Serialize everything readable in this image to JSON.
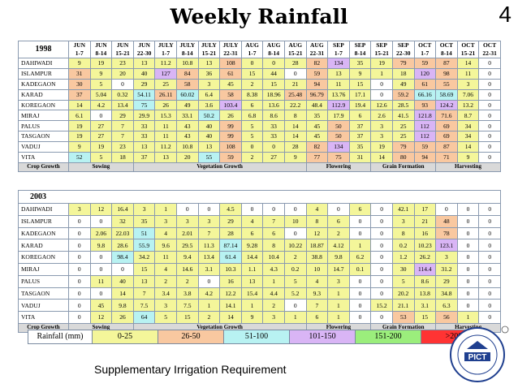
{
  "title": "Weekly Rainfall",
  "page_number": "4",
  "week_headers": [
    [
      "JUN",
      "1-7"
    ],
    [
      "JUN",
      "8-14"
    ],
    [
      "JUN",
      "15-21"
    ],
    [
      "JUN",
      "22-30"
    ],
    [
      "JULY",
      "1-7"
    ],
    [
      "JULY",
      "8-14"
    ],
    [
      "JULY",
      "15-21"
    ],
    [
      "JULY",
      "22-31"
    ],
    [
      "AUG",
      "1-7"
    ],
    [
      "AUG",
      "8-14"
    ],
    [
      "AUG",
      "15-21"
    ],
    [
      "AUG",
      "22-31"
    ],
    [
      "SEP",
      "1-7"
    ],
    [
      "SEP",
      "8-14"
    ],
    [
      "SEP",
      "15-21"
    ],
    [
      "SEP",
      "22-30"
    ],
    [
      "OCT",
      "1-7"
    ],
    [
      "OCT",
      "8-14"
    ],
    [
      "OCT",
      "15-21"
    ],
    [
      "OCT",
      "22-31"
    ]
  ],
  "table1": {
    "year": "1998",
    "rows": [
      {
        "name": "DAHIWADI",
        "values": [
          "9",
          "19",
          "23",
          "13",
          "11.2",
          "10.8",
          "13",
          "108",
          "0",
          "0",
          "28",
          "82",
          "134",
          "35",
          "19",
          "79",
          "59",
          "87",
          "14",
          "0"
        ],
        "classes": [
          1,
          1,
          1,
          1,
          1,
          1,
          1,
          2,
          1,
          1,
          1,
          2,
          4,
          1,
          1,
          2,
          2,
          2,
          1,
          0
        ]
      },
      {
        "name": "ISLAMPUR",
        "values": [
          "31",
          "9",
          "20",
          "40",
          "127",
          "84",
          "36",
          "61",
          "15",
          "44",
          "0",
          "59",
          "13",
          "9",
          "1",
          "18",
          "120",
          "98",
          "11",
          "0"
        ],
        "classes": [
          2,
          1,
          1,
          1,
          4,
          2,
          1,
          2,
          1,
          1,
          0,
          2,
          1,
          1,
          1,
          1,
          4,
          2,
          1,
          0
        ]
      },
      {
        "name": "KADEGAON",
        "values": [
          "30",
          "5",
          "0",
          "29",
          "25",
          "58",
          "3",
          "45",
          "2",
          "15",
          "21",
          "94",
          "11",
          "15",
          "0",
          "49",
          "61",
          "55",
          "3",
          "0"
        ],
        "classes": [
          2,
          1,
          0,
          1,
          1,
          2,
          1,
          1,
          1,
          1,
          1,
          2,
          1,
          1,
          0,
          1,
          2,
          2,
          1,
          0
        ]
      },
      {
        "name": "KARAD",
        "values": [
          "37",
          "5.04",
          "0.32",
          "54.11",
          "26.11",
          "60.02",
          "6.4",
          "58",
          "8.38",
          "18.96",
          "25.48",
          "96.79",
          "13.76",
          "17.1",
          "0",
          "59.2",
          "66.16",
          "58.69",
          "7.06",
          "0"
        ],
        "classes": [
          2,
          1,
          1,
          3,
          2,
          3,
          1,
          2,
          1,
          1,
          2,
          2,
          1,
          1,
          0,
          2,
          3,
          3,
          1,
          0
        ]
      },
      {
        "name": "KOREGAON",
        "values": [
          "14",
          "4.2",
          "13.4",
          "75",
          "26",
          "49",
          "3.6",
          "103.4",
          "6",
          "13.6",
          "22.2",
          "48.4",
          "112.9",
          "19.4",
          "12.6",
          "28.5",
          "93",
          "124.2",
          "13.2",
          "0"
        ],
        "classes": [
          1,
          1,
          1,
          3,
          1,
          1,
          1,
          4,
          1,
          1,
          1,
          1,
          4,
          1,
          1,
          1,
          2,
          4,
          1,
          0
        ]
      },
      {
        "name": "MIRAJ",
        "values": [
          "6.1",
          "0",
          "29",
          "29.9",
          "15.3",
          "33.1",
          "50.2",
          "26",
          "6.8",
          "8.6",
          "8",
          "35",
          "17.9",
          "6",
          "2.6",
          "41.5",
          "121.8",
          "71.6",
          "8.7",
          "0"
        ],
        "classes": [
          1,
          0,
          1,
          1,
          1,
          1,
          3,
          1,
          1,
          1,
          1,
          1,
          1,
          1,
          1,
          1,
          4,
          2,
          1,
          0
        ]
      },
      {
        "name": "PALUS",
        "values": [
          "19",
          "27",
          "7",
          "33",
          "11",
          "43",
          "40",
          "99",
          "5",
          "33",
          "14",
          "45",
          "50",
          "37",
          "3",
          "25",
          "112",
          "69",
          "34",
          "0"
        ],
        "classes": [
          1,
          1,
          1,
          1,
          1,
          1,
          1,
          2,
          1,
          1,
          1,
          1,
          2,
          1,
          1,
          1,
          4,
          2,
          1,
          0
        ]
      },
      {
        "name": "TASGAON",
        "values": [
          "19",
          "27",
          "7",
          "33",
          "11",
          "43",
          "40",
          "99",
          "5",
          "33",
          "14",
          "45",
          "50",
          "37",
          "3",
          "25",
          "112",
          "69",
          "34",
          "0"
        ],
        "classes": [
          1,
          1,
          1,
          1,
          1,
          1,
          1,
          2,
          1,
          1,
          1,
          1,
          2,
          1,
          1,
          1,
          4,
          2,
          1,
          0
        ]
      },
      {
        "name": "VADUJ",
        "values": [
          "9",
          "19",
          "23",
          "13",
          "11.2",
          "10.8",
          "13",
          "108",
          "0",
          "0",
          "28",
          "82",
          "134",
          "35",
          "19",
          "79",
          "59",
          "87",
          "14",
          "0"
        ],
        "classes": [
          1,
          1,
          1,
          1,
          1,
          1,
          1,
          2,
          1,
          1,
          1,
          2,
          4,
          1,
          1,
          2,
          2,
          2,
          1,
          0
        ]
      },
      {
        "name": "VITA",
        "values": [
          "52",
          "5",
          "18",
          "37",
          "13",
          "20",
          "55",
          "59",
          "2",
          "27",
          "9",
          "77",
          "75",
          "31",
          "14",
          "80",
          "94",
          "71",
          "9",
          "0"
        ],
        "classes": [
          3,
          1,
          1,
          1,
          1,
          1,
          3,
          2,
          1,
          1,
          1,
          2,
          2,
          1,
          1,
          2,
          2,
          2,
          1,
          0
        ]
      }
    ],
    "stages": [
      "Crop Growth",
      "Sowing",
      "Vegetation Growth",
      "Flowering",
      "Grain Formation",
      "Harvesting"
    ]
  },
  "table2": {
    "year": "2003",
    "rows": [
      {
        "name": "DAHIWADI",
        "values": [
          "3",
          "12",
          "16.4",
          "3",
          "1",
          "0",
          "0",
          "4.5",
          "0",
          "0",
          "0",
          "4",
          "0",
          "6",
          "0",
          "42.1",
          "17",
          "0",
          "0",
          "0"
        ],
        "classes": [
          1,
          1,
          1,
          1,
          1,
          0,
          0,
          1,
          0,
          0,
          0,
          1,
          0,
          1,
          0,
          1,
          1,
          0,
          0,
          0
        ]
      },
      {
        "name": "ISLAMPUR",
        "values": [
          "0",
          "0",
          "32",
          "35",
          "3",
          "3",
          "3",
          "29",
          "4",
          "7",
          "10",
          "8",
          "6",
          "0",
          "0",
          "3",
          "21",
          "48",
          "0",
          "0"
        ],
        "classes": [
          0,
          0,
          1,
          1,
          1,
          1,
          1,
          1,
          1,
          1,
          1,
          1,
          1,
          0,
          0,
          1,
          1,
          2,
          0,
          0
        ]
      },
      {
        "name": "KADEGAON",
        "values": [
          "0",
          "2.06",
          "22.03",
          "51",
          "4",
          "2.01",
          "7",
          "28",
          "6",
          "6",
          "0",
          "12",
          "2",
          "0",
          "0",
          "8",
          "16",
          "78",
          "0",
          "0"
        ],
        "classes": [
          0,
          1,
          1,
          3,
          1,
          1,
          1,
          1,
          1,
          1,
          0,
          1,
          1,
          0,
          0,
          1,
          1,
          2,
          0,
          0
        ]
      },
      {
        "name": "KARAD",
        "values": [
          "0",
          "9.8",
          "28.6",
          "55.9",
          "9.6",
          "29.5",
          "11.3",
          "87.14",
          "9.28",
          "8",
          "10.22",
          "18.87",
          "4.12",
          "1",
          "0",
          "0.2",
          "10.23",
          "123.1",
          "0",
          "0"
        ],
        "classes": [
          0,
          1,
          1,
          3,
          1,
          1,
          1,
          3,
          1,
          1,
          1,
          1,
          1,
          1,
          0,
          1,
          1,
          4,
          0,
          0
        ]
      },
      {
        "name": "KOREGAON",
        "values": [
          "0",
          "0",
          "98.4",
          "34.2",
          "11",
          "9.4",
          "13.4",
          "61.4",
          "14.4",
          "10.4",
          "2",
          "38.8",
          "9.8",
          "6.2",
          "0",
          "1.2",
          "26.2",
          "3",
          "0",
          "0"
        ],
        "classes": [
          0,
          0,
          3,
          1,
          1,
          1,
          1,
          3,
          1,
          1,
          1,
          1,
          1,
          1,
          0,
          1,
          1,
          1,
          0,
          0
        ]
      },
      {
        "name": "MIRAJ",
        "values": [
          "0",
          "0",
          "0",
          "15",
          "4",
          "14.6",
          "3.1",
          "10.3",
          "1.1",
          "4.3",
          "0.2",
          "10",
          "14.7",
          "0.1",
          "0",
          "30",
          "114.4",
          "31.2",
          "0",
          "0"
        ],
        "classes": [
          0,
          0,
          0,
          1,
          1,
          1,
          1,
          1,
          1,
          1,
          1,
          1,
          1,
          1,
          0,
          1,
          4,
          1,
          0,
          0
        ]
      },
      {
        "name": "PALUS",
        "values": [
          "0",
          "11",
          "40",
          "13",
          "2",
          "2",
          "0",
          "16",
          "13",
          "1",
          "5",
          "4",
          "3",
          "0",
          "0",
          "5",
          "8.6",
          "29",
          "0",
          "0"
        ],
        "classes": [
          0,
          1,
          1,
          1,
          1,
          1,
          0,
          1,
          1,
          1,
          1,
          1,
          1,
          0,
          0,
          1,
          1,
          1,
          0,
          0
        ]
      },
      {
        "name": "TASGAON",
        "values": [
          "0",
          "0",
          "14",
          "7",
          "3.4",
          "3.8",
          "4.2",
          "12.2",
          "15.4",
          "4.4",
          "5.2",
          "9.3",
          "1",
          "0",
          "0",
          "20.2",
          "13.8",
          "34.8",
          "0",
          "0"
        ],
        "classes": [
          0,
          0,
          1,
          1,
          1,
          1,
          1,
          1,
          1,
          1,
          1,
          1,
          1,
          0,
          0,
          1,
          1,
          1,
          0,
          0
        ]
      },
      {
        "name": "VADUJ",
        "values": [
          "0",
          "45",
          "9.8",
          "7.5",
          "3",
          "7.5",
          "1",
          "14.1",
          "1",
          "2",
          "0",
          "7",
          "1",
          "0",
          "15.2",
          "21.1",
          "3.1",
          "6.3",
          "0",
          "0"
        ],
        "classes": [
          0,
          1,
          1,
          1,
          1,
          1,
          1,
          1,
          1,
          1,
          0,
          1,
          1,
          0,
          1,
          1,
          1,
          1,
          0,
          0
        ]
      },
      {
        "name": "VITA",
        "values": [
          "0",
          "12",
          "26",
          "64",
          "5",
          "15",
          "2",
          "14",
          "9",
          "3",
          "1",
          "6",
          "1",
          "0",
          "0",
          "53",
          "15",
          "56",
          "1",
          "0"
        ],
        "classes": [
          0,
          1,
          1,
          3,
          1,
          1,
          1,
          1,
          1,
          1,
          1,
          1,
          1,
          0,
          0,
          2,
          1,
          2,
          1,
          0
        ]
      }
    ],
    "stages": [
      "Crop Growth",
      "Sowing",
      "Vegetation Growth",
      "Flowering",
      "Grain Formation",
      "Harvesting"
    ]
  },
  "legend": {
    "label": "Rainfall (mm)",
    "items": [
      {
        "range": "0-25",
        "color": "#f4f69a"
      },
      {
        "range": "26-50",
        "color": "#f9c8a0"
      },
      {
        "range": "51-100",
        "color": "#b8f2f2"
      },
      {
        "range": "101-150",
        "color": "#d9b5f5"
      },
      {
        "range": "151-200",
        "color": "#9bee7c"
      },
      {
        "range": ">200",
        "color": "#ff3333"
      }
    ]
  },
  "footer": "Supplementary Irrigation Requirement",
  "logo": {
    "text": "PICT"
  }
}
